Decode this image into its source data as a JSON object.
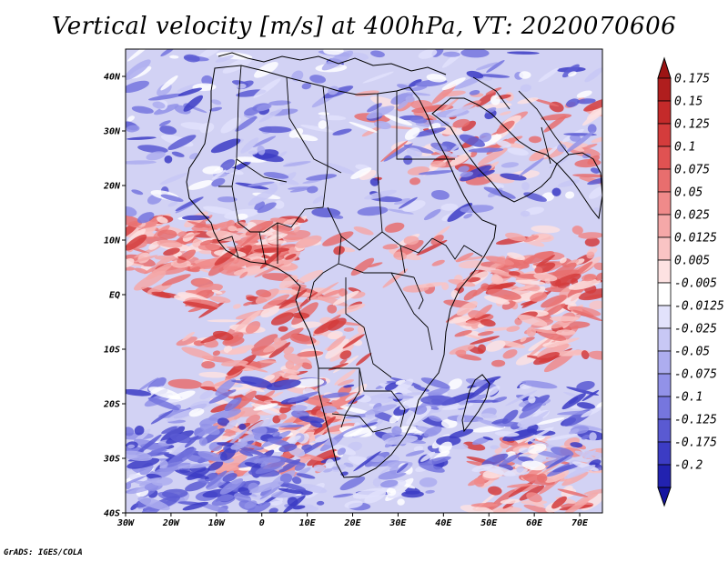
{
  "title": "Vertical velocity [m/s] at 400hPa, VT: 2020070606",
  "credit": "GrADS: IGES/COLA",
  "map": {
    "lon_range": [
      -30,
      75
    ],
    "lat_range": [
      -40,
      45
    ],
    "x_ticks": [
      {
        "lon": -30,
        "label": "30W"
      },
      {
        "lon": -20,
        "label": "20W"
      },
      {
        "lon": -10,
        "label": "10W"
      },
      {
        "lon": 0,
        "label": "0"
      },
      {
        "lon": 10,
        "label": "10E"
      },
      {
        "lon": 20,
        "label": "20E"
      },
      {
        "lon": 30,
        "label": "30E"
      },
      {
        "lon": 40,
        "label": "40E"
      },
      {
        "lon": 50,
        "label": "50E"
      },
      {
        "lon": 60,
        "label": "60E"
      },
      {
        "lon": 70,
        "label": "70E"
      }
    ],
    "y_ticks": [
      {
        "lat": 40,
        "label": "40N"
      },
      {
        "lat": 30,
        "label": "30N"
      },
      {
        "lat": 20,
        "label": "20N"
      },
      {
        "lat": 10,
        "label": "10N"
      },
      {
        "lat": 0,
        "label": "EQ"
      },
      {
        "lat": -10,
        "label": "10S"
      },
      {
        "lat": -20,
        "label": "20S"
      },
      {
        "lat": -30,
        "label": "30S"
      },
      {
        "lat": -40,
        "label": "40S"
      }
    ]
  },
  "colorbar": {
    "levels": [
      {
        "label": "0.175",
        "color": "#b01e1e"
      },
      {
        "label": "0.15",
        "color": "#c42a2a"
      },
      {
        "label": "0.125",
        "color": "#d43c3c"
      },
      {
        "label": "0.1",
        "color": "#e05252"
      },
      {
        "label": "0.075",
        "color": "#e86e6e"
      },
      {
        "label": "0.05",
        "color": "#f08a8a"
      },
      {
        "label": "0.025",
        "color": "#f5a8a8"
      },
      {
        "label": "0.0125",
        "color": "#f9c4c4"
      },
      {
        "label": "0.005",
        "color": "#fde2e2"
      },
      {
        "label": "-0.005",
        "color": "#ffffff"
      },
      {
        "label": "-0.0125",
        "color": "#e2e2fb"
      },
      {
        "label": "-0.025",
        "color": "#c8c8f5"
      },
      {
        "label": "-0.05",
        "color": "#adadef"
      },
      {
        "label": "-0.075",
        "color": "#9292e8"
      },
      {
        "label": "-0.1",
        "color": "#7676de"
      },
      {
        "label": "-0.125",
        "color": "#5a5ad2"
      },
      {
        "label": "-0.175",
        "color": "#3c3cc4"
      },
      {
        "label": "-0.2",
        "color": "#2222b0"
      }
    ],
    "bottom_color": "#1414a0",
    "top_color": "#9c1414"
  }
}
